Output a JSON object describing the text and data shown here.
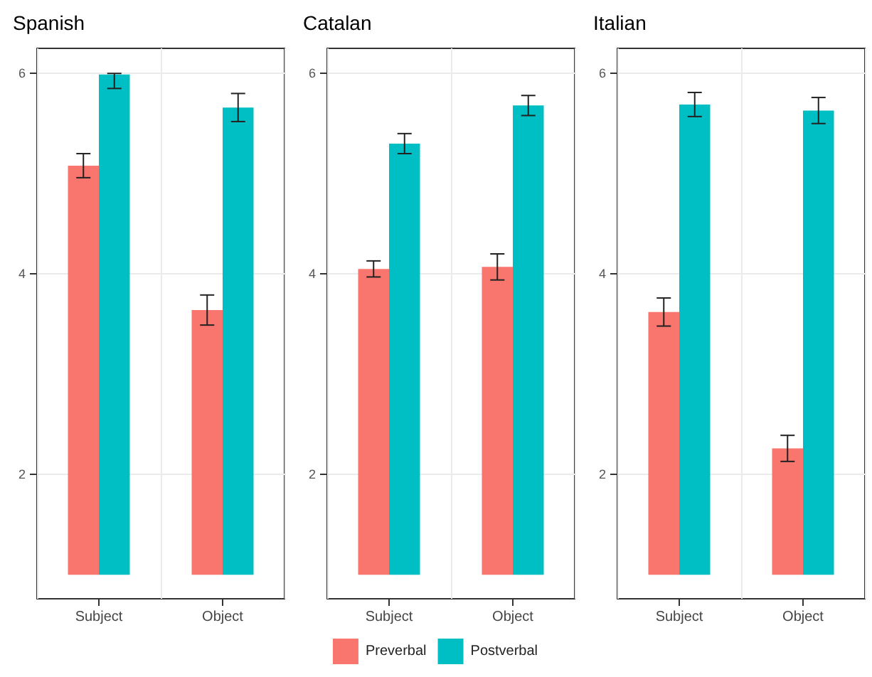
{
  "chart_data": [
    {
      "type": "bar",
      "title": "Spanish",
      "categories": [
        "Subject",
        "Object"
      ],
      "ylim": [
        0.76,
        6.25
      ],
      "yticks": [
        2,
        4,
        6
      ],
      "grid": true,
      "series": [
        {
          "color": "#f8766d",
          "base": [
            1,
            1
          ],
          "values": [
            4.08,
            2.64
          ],
          "errors": [
            0.12,
            0.15
          ]
        },
        {
          "color": "#00bfc4",
          "base": [
            1,
            1
          ],
          "values": [
            4.99,
            4.66
          ],
          "errors": [
            [
              5.85,
              6.0
            ],
            0.14
          ]
        }
      ]
    },
    {
      "type": "bar",
      "title": "Catalan",
      "categories": [
        "Subject",
        "Object"
      ],
      "ylim": [
        0.76,
        6.25
      ],
      "yticks": [
        2,
        4,
        6
      ],
      "grid": true,
      "legend": "bottom",
      "series": [
        {
          "name": "Preverbal",
          "color": "#f8766d",
          "base": [
            1,
            1
          ],
          "values": [
            3.05,
            3.07
          ],
          "errors": [
            0.08,
            0.13
          ]
        },
        {
          "name": "Postverbal",
          "color": "#00bfc4",
          "base": [
            1,
            1
          ],
          "values": [
            4.3,
            4.68
          ],
          "errors": [
            0.1,
            0.1
          ]
        }
      ]
    },
    {
      "type": "bar",
      "title": "Italian",
      "categories": [
        "Subject",
        "Object"
      ],
      "ylim": [
        0.76,
        6.25
      ],
      "yticks": [
        2,
        4,
        6
      ],
      "grid": true,
      "series": [
        {
          "color": "#f8766d",
          "base": [
            1,
            1
          ],
          "values": [
            2.62,
            1.26
          ],
          "errors": [
            0.14,
            0.13
          ]
        },
        {
          "color": "#00bfc4",
          "base": [
            1,
            1
          ],
          "values": [
            4.69,
            4.63
          ],
          "errors": [
            0.12,
            0.13
          ]
        }
      ]
    }
  ]
}
